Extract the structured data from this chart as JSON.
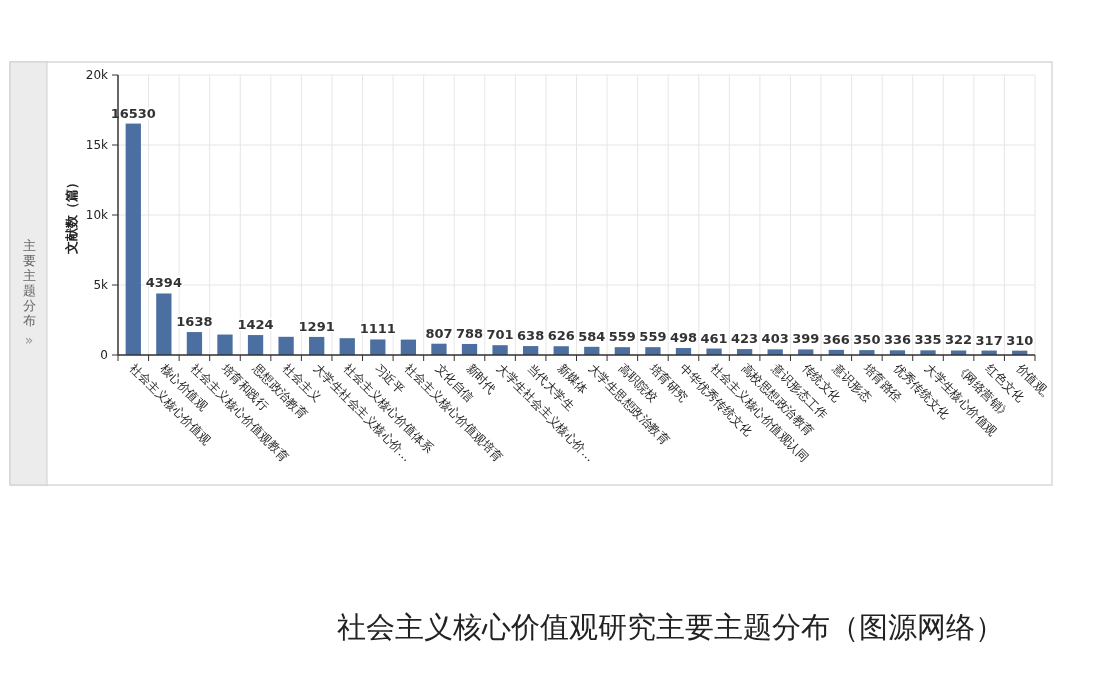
{
  "chart_data": {
    "type": "bar",
    "title": "主要主题分布",
    "ylabel": "文献数（篇）",
    "categories": [
      "社会主义核心价值观",
      "核心价值观",
      "社会主义核心价值观教育",
      "培育和践行",
      "思想政治教育",
      "社会主义",
      "大学生社会主义核心价…",
      "社会主义核心价值体系",
      "习近平",
      "社会主义核心价值观培育",
      "文化自信",
      "新时代",
      "大学生社会主义核心价…",
      "当代大学生",
      "新媒体",
      "大学生思想政治教育",
      "高职院校",
      "培育研究",
      "中华优秀传统文化",
      "社会主义核心价值观认同",
      "高校思想政治教育",
      "意识形态工作",
      "传统文化",
      "意识形态",
      "培育路径",
      "优秀传统文化",
      "大学生核心价值观",
      "《网络营销》",
      "红色文化",
      "价值观。"
    ],
    "values": [
      16530,
      4394,
      1638,
      1460,
      1424,
      1300,
      1291,
      1200,
      1111,
      1100,
      807,
      788,
      701,
      638,
      626,
      584,
      559,
      559,
      498,
      461,
      423,
      403,
      399,
      366,
      350,
      336,
      335,
      322,
      317,
      310
    ],
    "value_labels": [
      "16530",
      "4394",
      "1638",
      null,
      "1424",
      null,
      "1291",
      null,
      "1111",
      null,
      "807",
      "788",
      "701",
      "638",
      "626",
      "584",
      "559",
      "559",
      "498",
      "461",
      "423",
      "403",
      "399",
      "366",
      "350",
      "336",
      "335",
      "322",
      "317",
      "310"
    ],
    "color": "#4a6fa0",
    "ylim": [
      0,
      20000
    ],
    "yticks": [
      {
        "value": 0,
        "label": "0"
      },
      {
        "value": 5000,
        "label": "5k"
      },
      {
        "value": 10000,
        "label": "10k"
      },
      {
        "value": 15000,
        "label": "15k"
      },
      {
        "value": 20000,
        "label": "20k"
      }
    ],
    "grid": true,
    "annotations": [
      "»",
      "社会主义核心价值观研究主要主题分布（图源网络）"
    ]
  }
}
